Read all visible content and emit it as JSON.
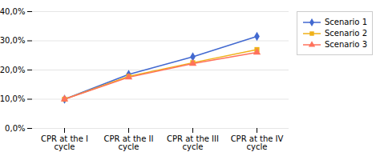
{
  "chart_data": {
    "type": "line",
    "categories": [
      "CPR at the I\ncycle",
      "CPR at the II\ncycle",
      "CPR at the III\ncycle",
      "CPR at the IV\ncycle"
    ],
    "series": [
      {
        "name": "Scenario 1",
        "marker": "diamond",
        "values": [
          0.1,
          0.185,
          0.245,
          0.315
        ]
      },
      {
        "name": "Scenario 2",
        "marker": "square",
        "values": [
          0.1,
          0.178,
          0.225,
          0.27
        ]
      },
      {
        "name": "Scenario 3",
        "marker": "triangle",
        "values": [
          0.1,
          0.175,
          0.222,
          0.26
        ]
      }
    ],
    "ylim": [
      0.0,
      0.4
    ],
    "yticks": [
      {
        "value": 0.0,
        "label": "0,0%"
      },
      {
        "value": 0.1,
        "label": "10,0%"
      },
      {
        "value": 0.2,
        "label": "20,0%"
      },
      {
        "value": 0.3,
        "label": "30,0%"
      },
      {
        "value": 0.4,
        "label": "40,0%"
      }
    ],
    "grid": true,
    "legend": "right"
  }
}
